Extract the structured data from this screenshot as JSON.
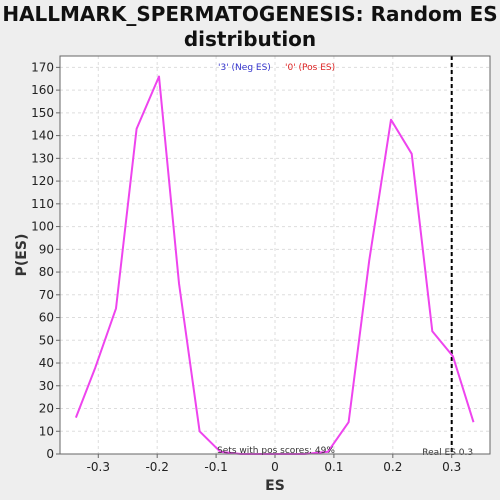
{
  "chart_data": {
    "type": "line",
    "title_lines": [
      "HALLMARK_SPERMATOGENESIS: Random ES",
      "distribution"
    ],
    "xlabel": "ES",
    "ylabel": "P(ES)",
    "xlim": [
      -0.365,
      0.365
    ],
    "ylim": [
      0,
      175
    ],
    "x_ticks": [
      -0.3,
      -0.2,
      -0.1,
      0.0,
      0.1,
      0.2,
      0.3
    ],
    "x_tick_labels": [
      "-0.3",
      "-0.2",
      "-0.1",
      "0",
      "0.1",
      "0.2",
      "0.3"
    ],
    "y_ticks": [
      0,
      10,
      20,
      30,
      40,
      50,
      60,
      70,
      80,
      90,
      100,
      110,
      120,
      130,
      140,
      150,
      160,
      170
    ],
    "grid": true,
    "series": [
      {
        "color": "#ee44ee",
        "x": [
          -0.338,
          -0.305,
          -0.27,
          -0.235,
          -0.197,
          -0.163,
          -0.128,
          -0.093,
          -0.058,
          -0.023,
          0.012,
          0.05,
          0.09,
          0.125,
          0.16,
          0.197,
          0.232,
          0.267,
          0.302,
          0.337
        ],
        "y": [
          16,
          38,
          64,
          143,
          166,
          75,
          10,
          1,
          0,
          0,
          0,
          0,
          1,
          14,
          85,
          147,
          132,
          54,
          43,
          14
        ]
      }
    ],
    "legend": {
      "placement": "top-center",
      "entries": [
        {
          "label": "'3' (Neg ES)",
          "color": "#3333cc"
        },
        {
          "label": "'0' (Pos ES)",
          "color": "#dd2222"
        }
      ]
    },
    "real_es": {
      "value": 0.3,
      "label": "Real ES 0.3"
    },
    "annotation": "Sets with pos scores: 49%"
  }
}
